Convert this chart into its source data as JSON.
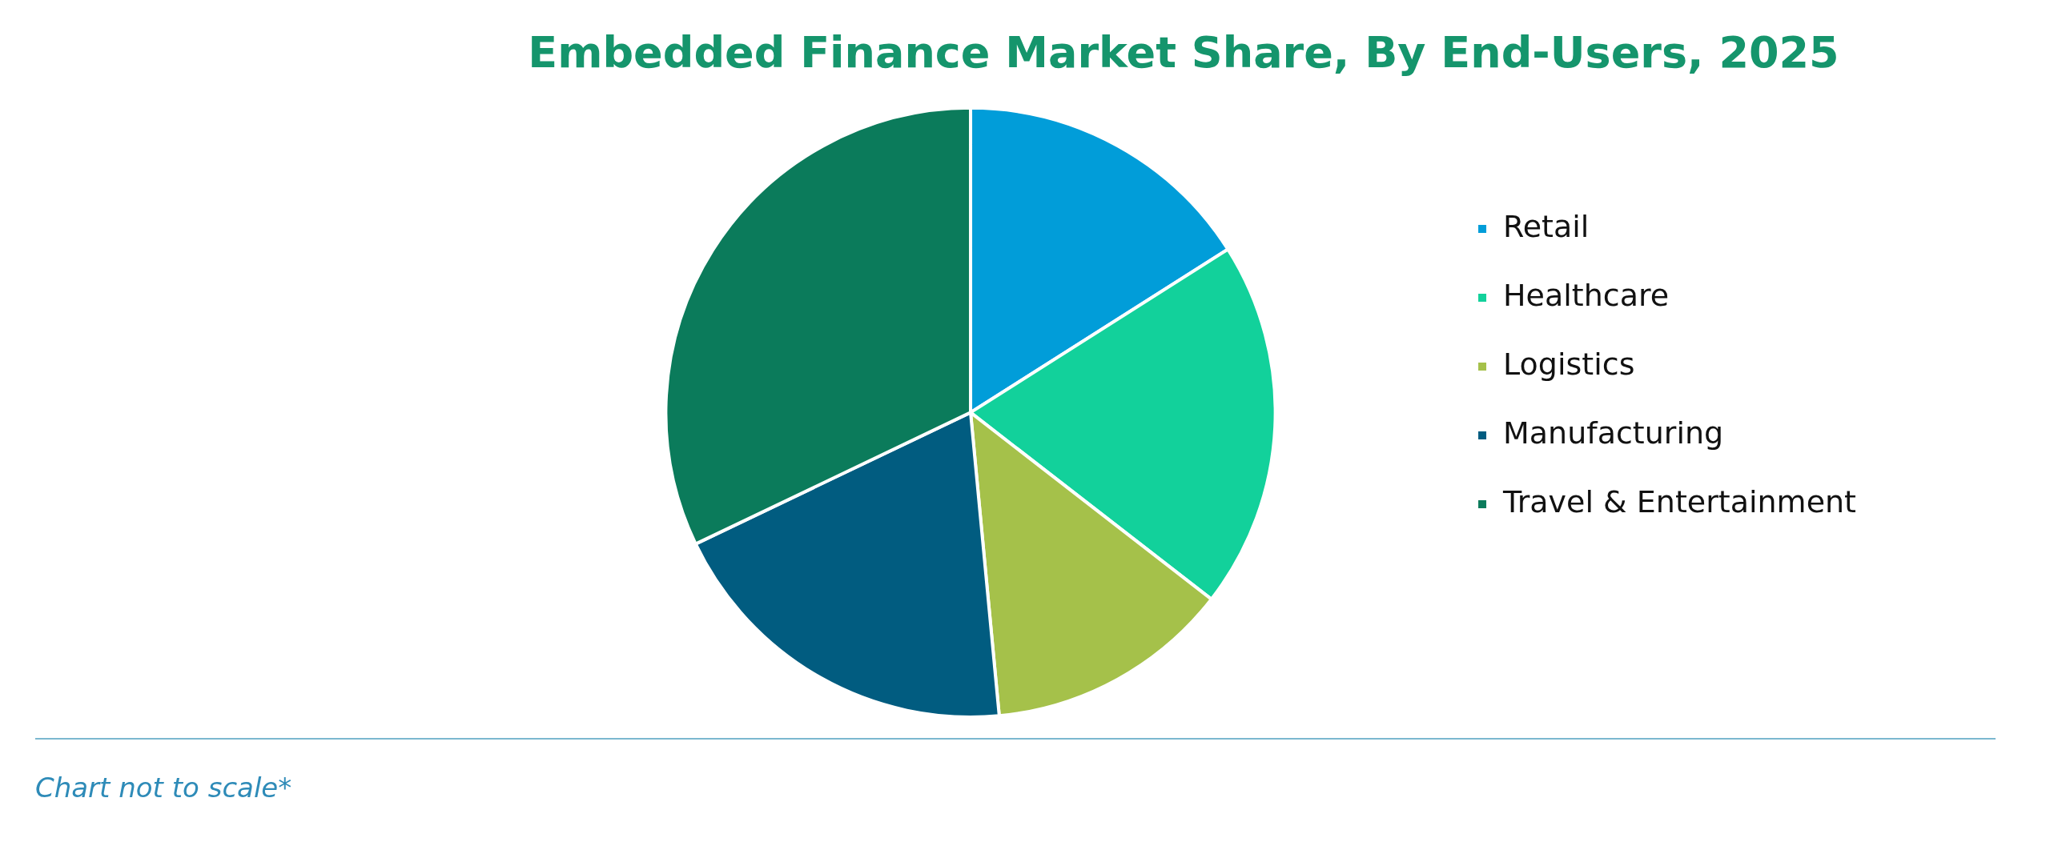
{
  "chart_data": {
    "type": "pie",
    "title": "Embedded Finance Market Share, By End-Users, 2025",
    "categories": [
      "Retail",
      "Healthcare",
      "Logistics",
      "Manufacturing",
      "Travel & Entertainment"
    ],
    "values": [
      16,
      19.5,
      13,
      19.4,
      32.1
    ],
    "colors": [
      "#019dd9",
      "#12d19b",
      "#a5c14a",
      "#015c80",
      "#0b7b5b"
    ],
    "legend": "right",
    "annotations": [
      "Chart not to scale*"
    ]
  }
}
